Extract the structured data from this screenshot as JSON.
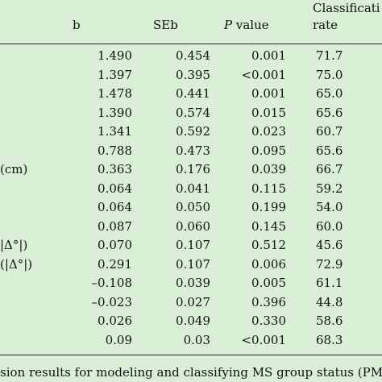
{
  "table": {
    "headers": {
      "b": "b",
      "seb": "SEb",
      "p_italic": "P",
      "p_rest": " value",
      "cr_line1": "Classificati",
      "cr_line2": "rate"
    },
    "rows": [
      {
        "label": "",
        "b": "1.490",
        "seb": "0.454",
        "p": "0.001",
        "cr": "71.7"
      },
      {
        "label": "",
        "b": "1.397",
        "seb": "0.395",
        "p": "<0.001",
        "cr": "75.0"
      },
      {
        "label": "",
        "b": "1.478",
        "seb": "0.441",
        "p": "0.001",
        "cr": "65.0"
      },
      {
        "label": "",
        "b": "1.390",
        "seb": "0.574",
        "p": "0.015",
        "cr": "65.6"
      },
      {
        "label": "",
        "b": "1.341",
        "seb": "0.592",
        "p": "0.023",
        "cr": "60.7"
      },
      {
        "label": "",
        "b": "0.788",
        "seb": "0.473",
        "p": "0.095",
        "cr": "65.6"
      },
      {
        "label": "(cm)",
        "b": "0.363",
        "seb": "0.176",
        "p": "0.039",
        "cr": "66.7"
      },
      {
        "label": "",
        "b": "0.064",
        "seb": "0.041",
        "p": "0.115",
        "cr": "59.2"
      },
      {
        "label": "",
        "b": "0.064",
        "seb": "0.050",
        "p": "0.199",
        "cr": "54.0"
      },
      {
        "label": "",
        "b": "0.087",
        "seb": "0.060",
        "p": "0.145",
        "cr": "60.0"
      },
      {
        "label": "|Δ°|)",
        "b": "0.070",
        "seb": "0.107",
        "p": "0.512",
        "cr": "45.6"
      },
      {
        "label": "(|Δ°|)",
        "b": "0.291",
        "seb": "0.107",
        "p": "0.006",
        "cr": "72.9"
      },
      {
        "label": "",
        "b": "–0.108",
        "seb": "0.039",
        "p": "0.005",
        "cr": "61.1"
      },
      {
        "label": "",
        "b": "–0.023",
        "seb": "0.027",
        "p": "0.396",
        "cr": "44.8"
      },
      {
        "label": "",
        "b": "0.026",
        "seb": "0.049",
        "p": "0.330",
        "cr": "58.6"
      },
      {
        "label": "",
        "b": "0.09",
        "seb": "0.03",
        "p": "<0.001",
        "cr": "68.3"
      }
    ]
  },
  "caption": "sion results for modeling and classifying MS group status (PMS"
}
